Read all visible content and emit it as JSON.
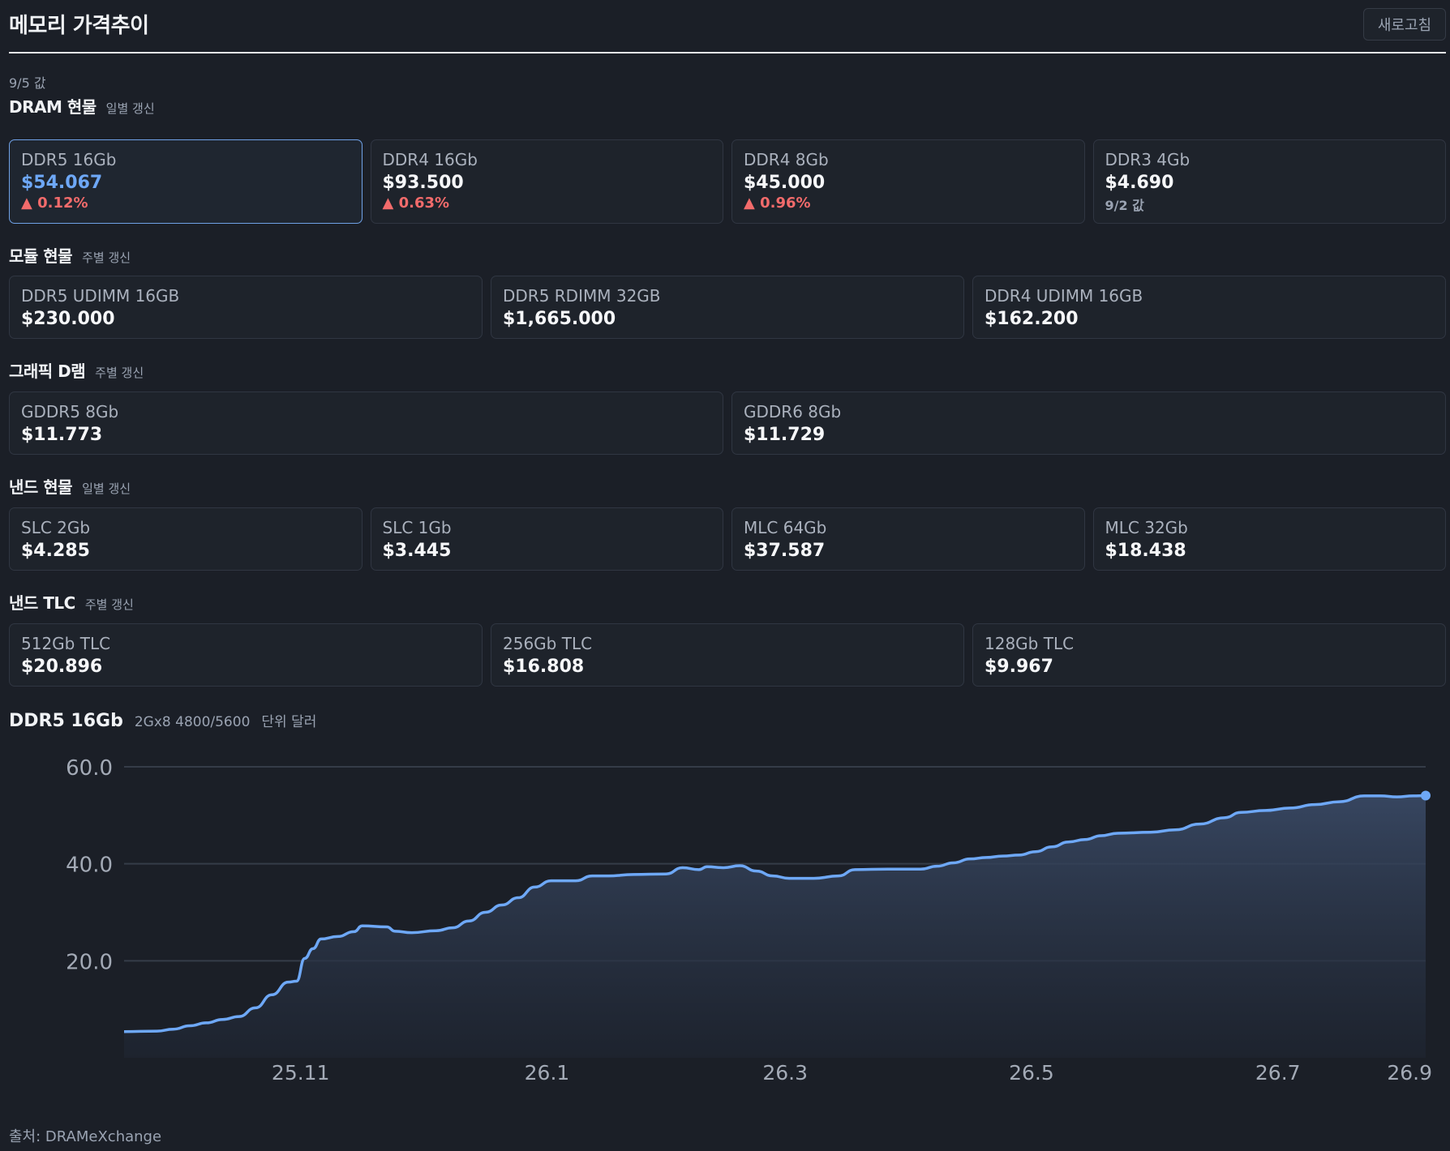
{
  "header": {
    "title": "메모리 가격추이",
    "refresh_label": "새로고침",
    "as_of": "9/5 값"
  },
  "sections": [
    {
      "title": "DRAM 현물",
      "sub": "일별 갱신",
      "cards": [
        {
          "name": "DDR5 16Gb",
          "value": "$54.067",
          "change": "▲ 0.12%",
          "selected": true
        },
        {
          "name": "DDR4 16Gb",
          "value": "$93.500",
          "change": "▲ 0.63%"
        },
        {
          "name": "DDR4 8Gb",
          "value": "$45.000",
          "change": "▲ 0.96%"
        },
        {
          "name": "DDR3 4Gb",
          "value": "$4.690",
          "note": "9/2 값"
        }
      ]
    },
    {
      "title": "모듈 현물",
      "sub": "주별 갱신",
      "cards": [
        {
          "name": "DDR5 UDIMM 16GB",
          "value": "$230.000"
        },
        {
          "name": "DDR5 RDIMM 32GB",
          "value": "$1,665.000"
        },
        {
          "name": "DDR4 UDIMM 16GB",
          "value": "$162.200"
        }
      ]
    },
    {
      "title": "그래픽 D램",
      "sub": "주별 갱신",
      "cards": [
        {
          "name": "GDDR5 8Gb",
          "value": "$11.773"
        },
        {
          "name": "GDDR6 8Gb",
          "value": "$11.729"
        }
      ]
    },
    {
      "title": "낸드 현물",
      "sub": "일별 갱신",
      "cards": [
        {
          "name": "SLC 2Gb",
          "value": "$4.285"
        },
        {
          "name": "SLC 1Gb",
          "value": "$3.445"
        },
        {
          "name": "MLC 64Gb",
          "value": "$37.587"
        },
        {
          "name": "MLC 32Gb",
          "value": "$18.438"
        }
      ]
    },
    {
      "title": "낸드 TLC",
      "sub": "주별 갱신",
      "cards": [
        {
          "name": "512Gb TLC",
          "value": "$20.896"
        },
        {
          "name": "256Gb TLC",
          "value": "$16.808"
        },
        {
          "name": "128Gb TLC",
          "value": "$9.967"
        }
      ]
    }
  ],
  "chart_header": {
    "title": "DDR5 16Gb",
    "spec": "2Gx8 4800/5600",
    "unit": "단위 달러"
  },
  "source": "출처: DRAMeXchange",
  "colors": {
    "accent": "#6ea8f7",
    "up": "#f26b6b",
    "background": "#1b1f27"
  },
  "chart_data": {
    "type": "area",
    "ylim": [
      0,
      60
    ],
    "yticks": [
      "60.0",
      "40.0",
      "20.0"
    ],
    "ytick_values": [
      60,
      40,
      20
    ],
    "xtick_labels": [
      "25.11",
      "26.1",
      "26.3",
      "26.5",
      "26.7",
      "26.9"
    ],
    "xtick_positions": [
      43,
      103,
      161,
      221,
      281,
      342
    ],
    "grid": true,
    "series": [
      {
        "values": [
          [
            0,
            5.4
          ],
          [
            8,
            5.5
          ],
          [
            12,
            5.9
          ],
          [
            16,
            6.6
          ],
          [
            20,
            7.2
          ],
          [
            24,
            7.9
          ],
          [
            28,
            8.5
          ],
          [
            32,
            10.3
          ],
          [
            36,
            13.0
          ],
          [
            40,
            15.6
          ],
          [
            42,
            15.8
          ],
          [
            44,
            20.5
          ],
          [
            46,
            22.5
          ],
          [
            48,
            24.5
          ],
          [
            52,
            25.0
          ],
          [
            56,
            26.0
          ],
          [
            58,
            27.2
          ],
          [
            64,
            27.0
          ],
          [
            66,
            26.1
          ],
          [
            70,
            25.8
          ],
          [
            76,
            26.2
          ],
          [
            80,
            26.8
          ],
          [
            84,
            28.2
          ],
          [
            88,
            30.0
          ],
          [
            92,
            31.5
          ],
          [
            96,
            33.0
          ],
          [
            100,
            35.2
          ],
          [
            104,
            36.5
          ],
          [
            110,
            36.5
          ],
          [
            114,
            37.5
          ],
          [
            118,
            37.5
          ],
          [
            124,
            37.8
          ],
          [
            132,
            37.9
          ],
          [
            136,
            39.2
          ],
          [
            140,
            38.8
          ],
          [
            142,
            39.4
          ],
          [
            146,
            39.2
          ],
          [
            150,
            39.6
          ],
          [
            154,
            38.5
          ],
          [
            158,
            37.5
          ],
          [
            162,
            37.0
          ],
          [
            168,
            37.0
          ],
          [
            174,
            37.5
          ],
          [
            178,
            38.8
          ],
          [
            186,
            38.9
          ],
          [
            194,
            38.9
          ],
          [
            198,
            39.5
          ],
          [
            202,
            40.2
          ],
          [
            206,
            41.0
          ],
          [
            210,
            41.3
          ],
          [
            214,
            41.6
          ],
          [
            218,
            41.8
          ],
          [
            222,
            42.5
          ],
          [
            226,
            43.5
          ],
          [
            230,
            44.5
          ],
          [
            234,
            45.0
          ],
          [
            238,
            45.8
          ],
          [
            242,
            46.3
          ],
          [
            250,
            46.5
          ],
          [
            256,
            47.0
          ],
          [
            262,
            48.2
          ],
          [
            268,
            49.5
          ],
          [
            272,
            50.6
          ],
          [
            278,
            51.0
          ],
          [
            284,
            51.5
          ],
          [
            290,
            52.2
          ],
          [
            296,
            52.8
          ],
          [
            302,
            54.0
          ],
          [
            306,
            54.0
          ],
          [
            310,
            53.8
          ],
          [
            314,
            54.0
          ],
          [
            317,
            54.067
          ]
        ],
        "x_count": 317
      }
    ]
  }
}
